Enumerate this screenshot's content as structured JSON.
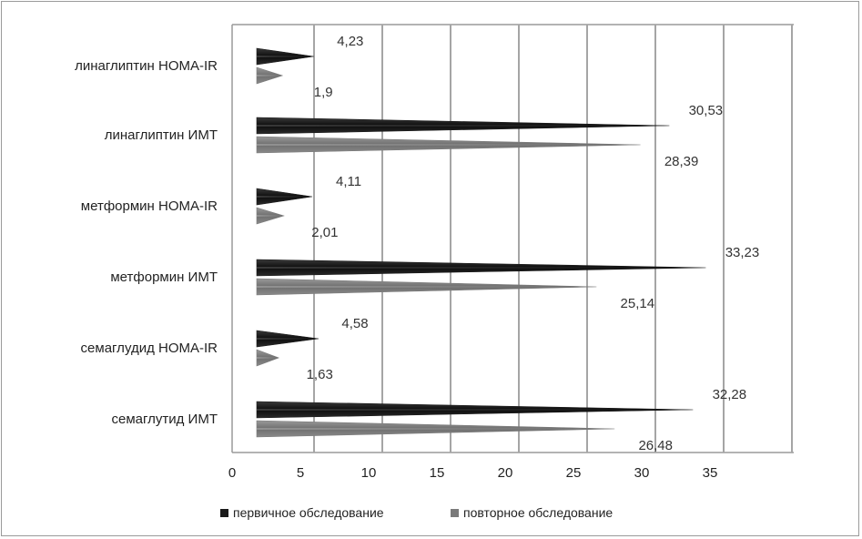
{
  "chart_data": {
    "type": "bar",
    "orientation": "horizontal",
    "categories": [
      "линаглиптин HOMA-IR",
      "линаглиптин ИМТ",
      "метформин HOMA-IR",
      "метформин ИМТ",
      "семаглудид HOMA-IR",
      "семаглутид ИМТ"
    ],
    "series": [
      {
        "name": "первичное обследование",
        "color": "#1a1a1a",
        "values": [
          4.23,
          30.53,
          4.11,
          33.23,
          4.58,
          32.28
        ],
        "labels": [
          "4,23",
          "30,53",
          "4,11",
          "33,23",
          "4,58",
          "32,28"
        ]
      },
      {
        "name": "повторное обследование",
        "color": "#7a7a7a",
        "values": [
          1.9,
          28.39,
          2.01,
          25.14,
          1.63,
          26.48
        ],
        "labels": [
          "1,9",
          "28,39",
          "2,01",
          "25,14",
          "1,63",
          "26,48"
        ]
      }
    ],
    "xticks": [
      "0",
      "5",
      "10",
      "15",
      "20",
      "25",
      "30",
      "35"
    ],
    "xlim": [
      0,
      40
    ],
    "grid": true,
    "legend": "bottom"
  }
}
